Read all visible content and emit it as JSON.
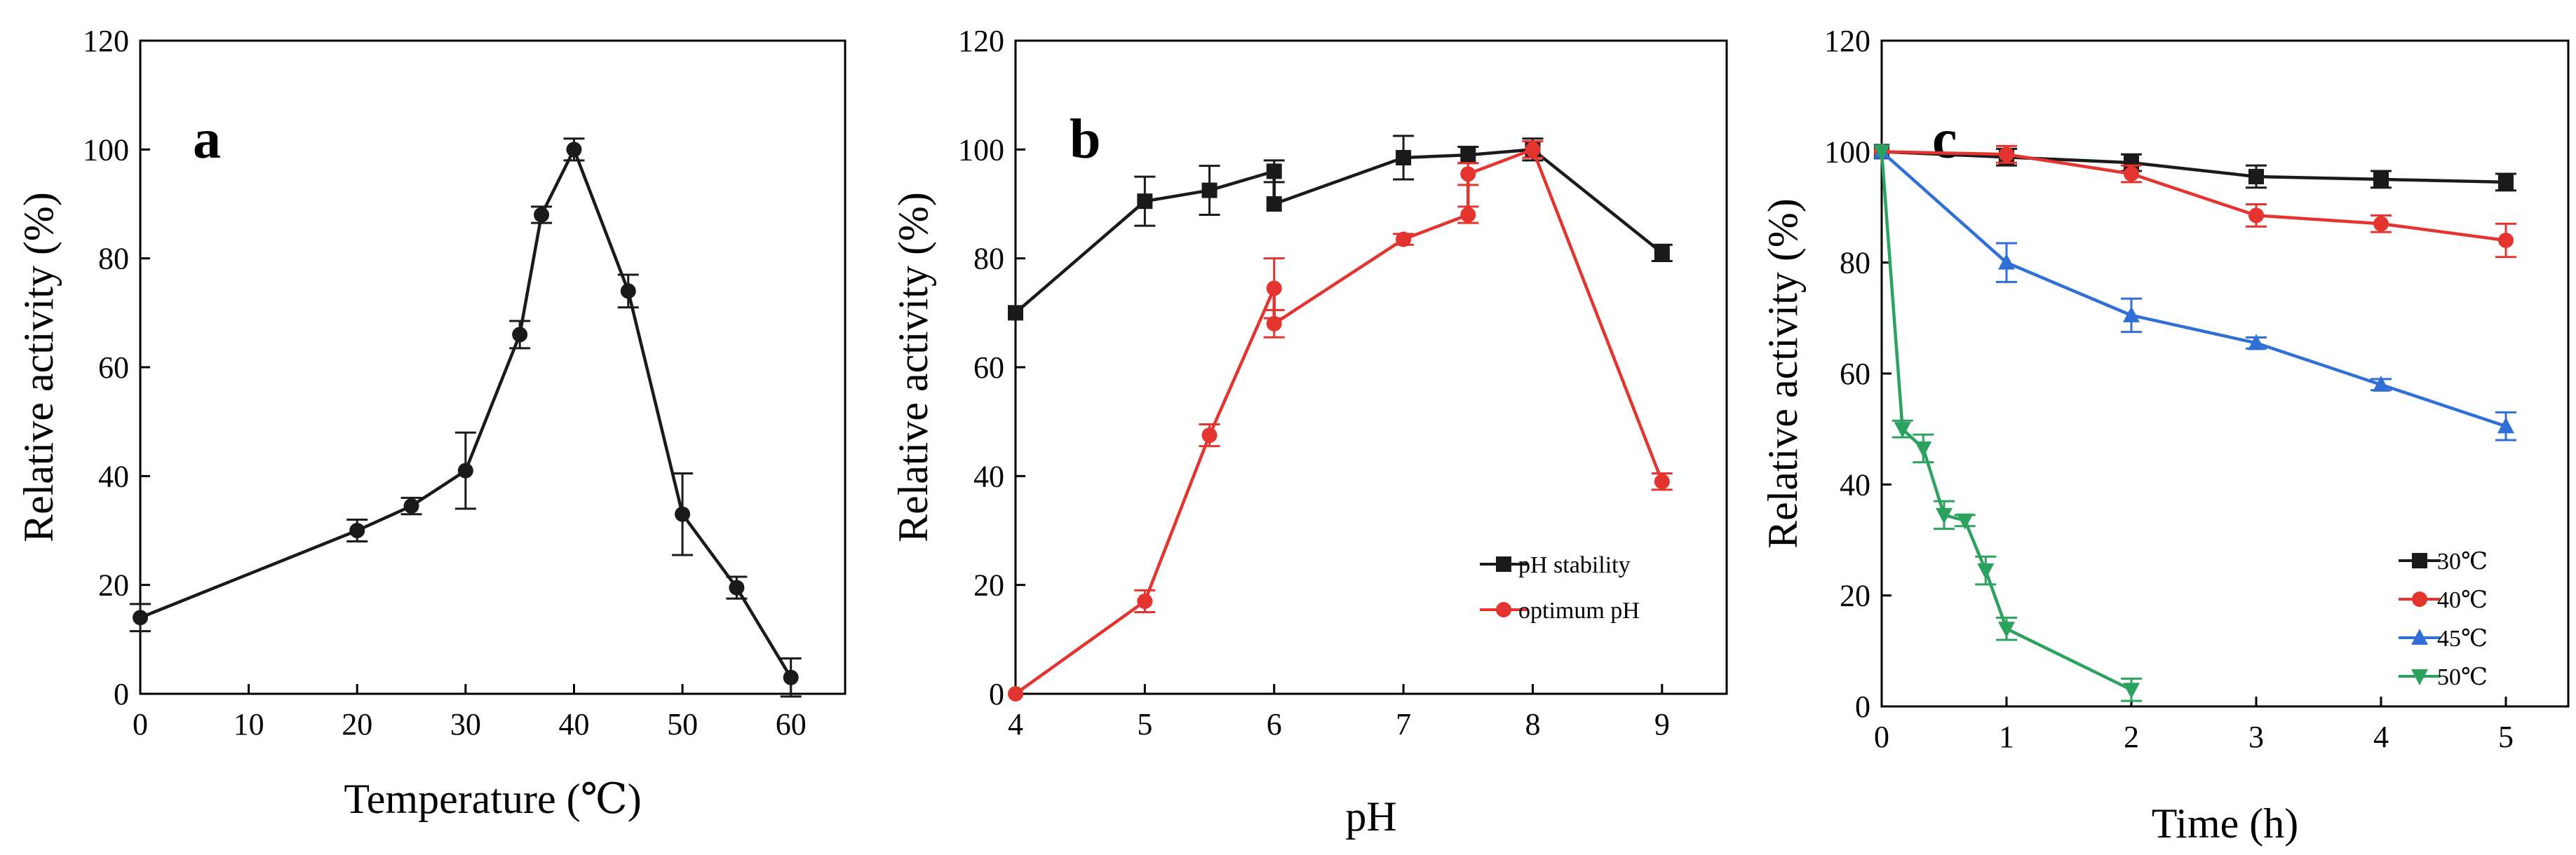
{
  "colors": {
    "black": "#1a1a1a",
    "red": "#e3342f",
    "blue": "#2f6fd6",
    "green": "#2ca25f"
  },
  "chart_data": [
    {
      "type": "line",
      "panel": "a",
      "xlabel": "Temperature (℃)",
      "ylabel": "Relative activity (%)",
      "xlim": [
        0,
        65
      ],
      "ylim": [
        0,
        120
      ],
      "xticks": [
        0,
        10,
        20,
        30,
        40,
        50,
        60
      ],
      "yticks": [
        0,
        20,
        40,
        60,
        80,
        100,
        120
      ],
      "series": [
        {
          "name": "temperature",
          "color": "#1a1a1a",
          "marker": "circle",
          "x": [
            0,
            20,
            25,
            30,
            35,
            37,
            40,
            45,
            50,
            55,
            60
          ],
          "y": [
            14,
            30,
            34.5,
            41,
            66,
            88,
            100,
            74,
            33,
            19.5,
            3
          ],
          "err": [
            2.5,
            2,
            1.5,
            7,
            2.5,
            1.5,
            2,
            3,
            7.5,
            2,
            3.5
          ]
        }
      ]
    },
    {
      "type": "line",
      "panel": "b",
      "xlabel": "pH",
      "ylabel": "Relative activity (%)",
      "xlim": [
        4,
        9.5
      ],
      "ylim": [
        0,
        120
      ],
      "xticks": [
        4,
        5,
        6,
        7,
        8,
        9
      ],
      "yticks": [
        0,
        20,
        40,
        60,
        80,
        100,
        120
      ],
      "legend": "bottom-right",
      "series": [
        {
          "name": "pH stability",
          "color": "#1a1a1a",
          "marker": "square",
          "x": [
            4,
            5,
            5.5,
            6,
            6,
            7,
            7.5,
            8,
            9
          ],
          "y": [
            70,
            90.5,
            92.5,
            96,
            90,
            98.5,
            99,
            100,
            81
          ],
          "err": [
            0,
            4.5,
            4.5,
            2,
            0,
            4,
            1.5,
            2,
            1.5
          ]
        },
        {
          "name": "optimum pH",
          "color": "#e3342f",
          "marker": "circle",
          "x": [
            4,
            5,
            5.5,
            6,
            6,
            7,
            7.5,
            7.5,
            8,
            9
          ],
          "y": [
            0,
            17,
            47.5,
            74.5,
            68,
            83.5,
            88,
            95.5,
            100,
            39
          ],
          "err": [
            0,
            2,
            2,
            5.5,
            2.5,
            1,
            1.5,
            2,
            1.5,
            1.5
          ]
        }
      ]
    },
    {
      "type": "line",
      "panel": "c",
      "xlabel": "Time (h)",
      "ylabel": "Relative activity (%)",
      "xlim": [
        0,
        5.5
      ],
      "ylim": [
        0,
        120
      ],
      "xticks": [
        0,
        1,
        2,
        3,
        4,
        5
      ],
      "yticks": [
        0,
        20,
        40,
        60,
        80,
        100,
        120
      ],
      "legend": "bottom-right",
      "series": [
        {
          "name": "30℃",
          "color": "#1a1a1a",
          "marker": "square",
          "x": [
            0,
            1,
            2,
            3,
            4,
            5
          ],
          "y": [
            100,
            99,
            98,
            95.5,
            95,
            94.5
          ],
          "err": [
            0,
            1.5,
            1.5,
            2,
            1.5,
            1.5
          ]
        },
        {
          "name": "40℃",
          "color": "#e3342f",
          "marker": "circle",
          "x": [
            0,
            1,
            2,
            3,
            4,
            5
          ],
          "y": [
            100,
            99.5,
            96,
            88.5,
            87,
            84
          ],
          "err": [
            0,
            1.5,
            1.5,
            2,
            1.5,
            3
          ]
        },
        {
          "name": "45℃",
          "color": "#2f6fd6",
          "marker": "triangle-up",
          "x": [
            0,
            1,
            2,
            3,
            4,
            5
          ],
          "y": [
            100,
            80,
            70.5,
            65.5,
            58,
            50.5
          ],
          "err": [
            0,
            3.5,
            3,
            1,
            1,
            2.5
          ]
        },
        {
          "name": "50℃",
          "color": "#2ca25f",
          "marker": "triangle-down",
          "x": [
            0,
            0.167,
            0.333,
            0.5,
            0.667,
            0.833,
            1,
            2
          ],
          "y": [
            100,
            50,
            46.5,
            34.5,
            33.5,
            24.5,
            14,
            3
          ],
          "err": [
            0,
            1.5,
            2.5,
            2.5,
            1,
            2.5,
            2,
            2
          ]
        }
      ]
    }
  ]
}
